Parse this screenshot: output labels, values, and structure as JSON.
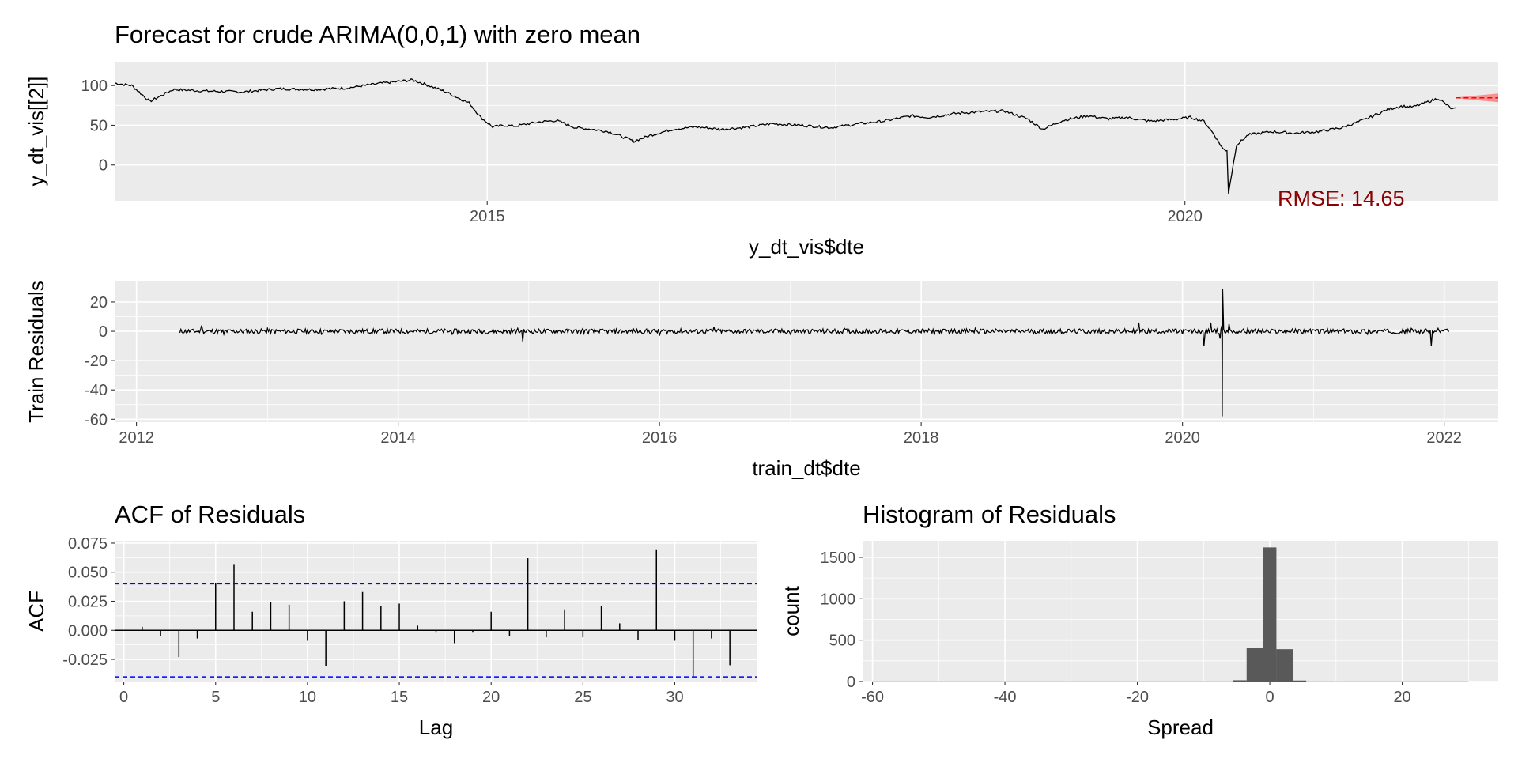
{
  "colors": {
    "panel_bg": "#ebebeb",
    "grid_major": "#ffffff",
    "series": "#000000",
    "forecast_band": "#ff8080",
    "forecast_line": "#ff0000",
    "ci_line": "#0000ff",
    "hist_fill": "#595959",
    "rmse_text": "#8b0000"
  },
  "chart_data": [
    {
      "id": "forecast",
      "type": "line",
      "title": "Forecast for crude ARIMA(0,0,1) with zero mean",
      "xlabel": "y_dt_vis$dte",
      "ylabel": "y_dt_vis[[2]]",
      "x_is_date": true,
      "xlim": [
        "2012-05-01",
        "2022-03-31"
      ],
      "ylim": [
        -45,
        130
      ],
      "xticks": [
        {
          "value": "2015-01-01",
          "label": "2015"
        },
        {
          "value": "2020-01-01",
          "label": "2020"
        }
      ],
      "yticks": [
        {
          "value": 0,
          "label": "0"
        },
        {
          "value": 50,
          "label": "50"
        },
        {
          "value": 100,
          "label": "100"
        }
      ],
      "grid": true,
      "series": [
        {
          "x": [
            "2012-05-01",
            "2012-06-15",
            "2012-08-01",
            "2012-10-01",
            "2013-01-01",
            "2013-04-01",
            "2013-07-01",
            "2013-10-01",
            "2014-01-01",
            "2014-04-01",
            "2014-06-20",
            "2014-08-01",
            "2014-09-15",
            "2014-10-15",
            "2014-11-15",
            "2014-12-15",
            "2015-01-15",
            "2015-02-15",
            "2015-03-15",
            "2015-05-15",
            "2015-07-01",
            "2015-08-20",
            "2015-10-01",
            "2015-11-15",
            "2016-01-20",
            "2016-03-01",
            "2016-05-01",
            "2016-07-01",
            "2016-09-01",
            "2016-11-01",
            "2017-01-15",
            "2017-04-01",
            "2017-06-20",
            "2017-09-01",
            "2017-11-01",
            "2018-01-15",
            "2018-03-01",
            "2018-05-15",
            "2018-07-15",
            "2018-09-15",
            "2018-11-15",
            "2018-12-25",
            "2019-02-15",
            "2019-04-20",
            "2019-06-15",
            "2019-08-01",
            "2019-10-01",
            "2019-12-15",
            "2020-01-15",
            "2020-02-20",
            "2020-03-15",
            "2020-04-10",
            "2020-04-20",
            "2020-04-24",
            "2020-05-15",
            "2020-06-15",
            "2020-08-15",
            "2020-10-15",
            "2020-12-15",
            "2021-02-15",
            "2021-04-15",
            "2021-06-15",
            "2021-07-20",
            "2021-08-20",
            "2021-10-25",
            "2021-12-01",
            "2021-12-10"
          ],
          "y": [
            103,
            100,
            80,
            95,
            93,
            92,
            96,
            95,
            97,
            103,
            107,
            100,
            92,
            85,
            78,
            60,
            48,
            50,
            49,
            54,
            56,
            47,
            45,
            42,
            30,
            37,
            45,
            48,
            45,
            47,
            52,
            50,
            47,
            52,
            55,
            62,
            60,
            65,
            67,
            68,
            58,
            45,
            56,
            62,
            58,
            60,
            55,
            58,
            60,
            55,
            40,
            20,
            18,
            -35,
            25,
            38,
            42,
            40,
            42,
            47,
            57,
            70,
            74,
            73,
            84,
            70,
            72
          ]
        },
        {
          "x": [
            "2021-12-10",
            "2022-03-31"
          ],
          "y": [
            84.5,
            84.5
          ]
        }
      ],
      "forecast_band": {
        "x": [
          "2021-12-10",
          "2022-03-31"
        ],
        "lower": [
          84,
          79
        ],
        "upper": [
          85,
          90
        ]
      },
      "annotation": "RMSE: 14.65"
    },
    {
      "id": "residuals",
      "type": "line",
      "xlabel": "train_dt$dte",
      "ylabel": "Train Residuals",
      "x_is_date": true,
      "xlim": [
        "2011-11-01",
        "2022-06-01"
      ],
      "ylim": [
        -62,
        34
      ],
      "xticks": [
        {
          "value": "2012-01-01",
          "label": "2012"
        },
        {
          "value": "2014-01-01",
          "label": "2014"
        },
        {
          "value": "2016-01-01",
          "label": "2016"
        },
        {
          "value": "2018-01-01",
          "label": "2018"
        },
        {
          "value": "2020-01-01",
          "label": "2020"
        },
        {
          "value": "2022-01-01",
          "label": "2022"
        }
      ],
      "yticks": [
        {
          "value": -60,
          "label": "-60"
        },
        {
          "value": -40,
          "label": "-40"
        },
        {
          "value": -20,
          "label": "-20"
        },
        {
          "value": 0,
          "label": "0"
        },
        {
          "value": 20,
          "label": "20"
        }
      ],
      "grid": true,
      "series": [
        {
          "x": [
            "2012-05-01",
            "2012-07-01",
            "2012-09-01",
            "2013-01-01",
            "2013-06-01",
            "2014-01-01",
            "2014-06-01",
            "2014-12-01",
            "2014-12-15",
            "2015-06-01",
            "2016-01-01",
            "2016-06-01",
            "2017-01-01",
            "2017-06-01",
            "2018-01-01",
            "2018-06-01",
            "2019-01-01",
            "2019-09-01",
            "2019-10-01",
            "2020-01-01",
            "2020-03-01",
            "2020-03-20",
            "2020-04-15",
            "2020-04-20",
            "2020-04-21",
            "2020-04-22",
            "2020-05-10",
            "2020-06-01",
            "2020-07-01",
            "2020-09-01",
            "2021-01-01",
            "2021-06-01",
            "2021-10-01",
            "2021-11-26",
            "2021-12-15",
            "2022-01-15"
          ],
          "y": [
            -1,
            4,
            -2,
            2,
            -2,
            1,
            -2,
            2,
            -7,
            2,
            -3,
            3,
            -2,
            2,
            -1,
            2,
            -2,
            6,
            -1,
            -2,
            -10,
            6,
            -5,
            4,
            -58,
            29,
            5,
            0,
            2,
            -1,
            1,
            -2,
            2,
            -10,
            2,
            0
          ]
        }
      ]
    },
    {
      "id": "acf",
      "type": "bar",
      "title": "ACF of Residuals",
      "xlabel": "Lag",
      "ylabel": "ACF",
      "xlim": [
        -0.5,
        34.5
      ],
      "ylim": [
        -0.044,
        0.077
      ],
      "xticks": [
        {
          "value": 0,
          "label": "0"
        },
        {
          "value": 5,
          "label": "5"
        },
        {
          "value": 10,
          "label": "10"
        },
        {
          "value": 15,
          "label": "15"
        },
        {
          "value": 20,
          "label": "20"
        },
        {
          "value": 25,
          "label": "25"
        },
        {
          "value": 30,
          "label": "30"
        }
      ],
      "yticks": [
        {
          "value": -0.025,
          "label": "-0.025"
        },
        {
          "value": 0,
          "label": "0.000"
        },
        {
          "value": 0.025,
          "label": "0.025"
        },
        {
          "value": 0.05,
          "label": "0.050"
        },
        {
          "value": 0.075,
          "label": "0.075"
        }
      ],
      "grid": true,
      "lags": [
        1,
        2,
        3,
        4,
        5,
        6,
        7,
        8,
        9,
        10,
        11,
        12,
        13,
        14,
        15,
        16,
        17,
        18,
        19,
        20,
        21,
        22,
        23,
        24,
        25,
        26,
        27,
        28,
        29,
        30,
        31,
        32,
        33
      ],
      "values": [
        0.003,
        -0.005,
        -0.023,
        -0.007,
        0.041,
        0.057,
        0.016,
        0.024,
        0.022,
        -0.009,
        -0.031,
        0.025,
        0.033,
        0.021,
        0.023,
        0.004,
        -0.002,
        -0.011,
        -0.002,
        0.016,
        -0.005,
        0.062,
        -0.006,
        0.018,
        -0.006,
        0.021,
        0.006,
        -0.008,
        0.069,
        -0.009,
        -0.04,
        -0.007,
        -0.03
      ],
      "ci": 0.04
    },
    {
      "id": "hist",
      "type": "bar",
      "title": "Histogram of Residuals",
      "xlabel": "Spread",
      "ylabel": "count",
      "xlim": [
        -61.5,
        34.5
      ],
      "ylim": [
        0,
        1700
      ],
      "xticks": [
        {
          "value": -60,
          "label": "-60"
        },
        {
          "value": -40,
          "label": "-40"
        },
        {
          "value": -20,
          "label": "-20"
        },
        {
          "value": 0,
          "label": "0"
        },
        {
          "value": 20,
          "label": "20"
        }
      ],
      "yticks": [
        {
          "value": 0,
          "label": "0"
        },
        {
          "value": 500,
          "label": "500"
        },
        {
          "value": 1000,
          "label": "1000"
        },
        {
          "value": 1500,
          "label": "1500"
        }
      ],
      "grid": true,
      "bins": [
        {
          "from": -60,
          "to": -5.5,
          "count": 2
        },
        {
          "from": -5.5,
          "to": -3.5,
          "count": 15
        },
        {
          "from": -3.5,
          "to": -1,
          "count": 410
        },
        {
          "from": -1,
          "to": 1,
          "count": 1620
        },
        {
          "from": 1,
          "to": 3.5,
          "count": 390
        },
        {
          "from": 3.5,
          "to": 5.5,
          "count": 12
        },
        {
          "from": 5.5,
          "to": 30,
          "count": 2
        }
      ]
    }
  ]
}
